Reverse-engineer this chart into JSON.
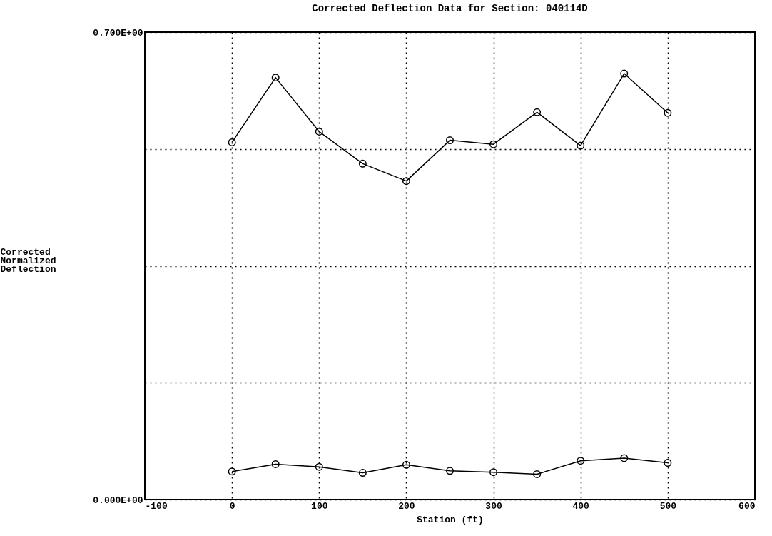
{
  "chart_data": {
    "type": "line",
    "title": "Corrected Deflection Data for Section: 040114D",
    "xlabel": "Station (ft)",
    "ylabel": "Corrected\nNormalized\nDeflection",
    "x": [
      0,
      50,
      100,
      150,
      200,
      250,
      300,
      350,
      400,
      450,
      500
    ],
    "series": [
      {
        "color": "#000000",
        "values": [
          0.535,
          0.632,
          0.551,
          0.503,
          0.477,
          0.538,
          0.532,
          0.58,
          0.53,
          0.638,
          0.579
        ]
      },
      {
        "color": "#000000",
        "values": [
          0.042,
          0.053,
          0.049,
          0.04,
          0.052,
          0.043,
          0.041,
          0.038,
          0.058,
          0.062,
          0.055
        ]
      }
    ],
    "xlim": [
      -100,
      600
    ],
    "xticks": [
      -100,
      0,
      100,
      200,
      300,
      400,
      500,
      600
    ],
    "ylim": [
      0,
      0.7
    ],
    "yticks": [
      {
        "value": 0,
        "label": "0.000E+00"
      },
      {
        "value": 0.175,
        "label": null
      },
      {
        "value": 0.35,
        "label": null
      },
      {
        "value": 0.525,
        "label": null
      },
      {
        "value": 0.7,
        "label": "0.700E+00"
      }
    ],
    "grid": true,
    "marker": "circle",
    "line_style": "solid"
  }
}
